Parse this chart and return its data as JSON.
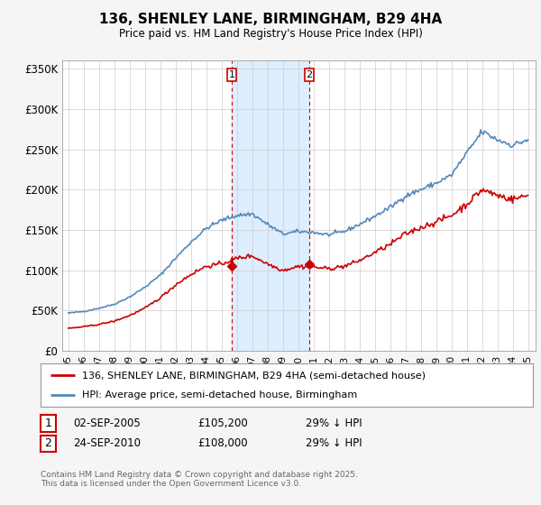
{
  "title": "136, SHENLEY LANE, BIRMINGHAM, B29 4HA",
  "subtitle": "Price paid vs. HM Land Registry's House Price Index (HPI)",
  "legend_property": "136, SHENLEY LANE, BIRMINGHAM, B29 4HA (semi-detached house)",
  "legend_hpi": "HPI: Average price, semi-detached house, Birmingham",
  "footer": "Contains HM Land Registry data © Crown copyright and database right 2025.\nThis data is licensed under the Open Government Licence v3.0.",
  "purchase1": {
    "label": "1",
    "date": "02-SEP-2005",
    "price": "£105,200",
    "hpi": "29% ↓ HPI",
    "year": 2005.67
  },
  "purchase2": {
    "label": "2",
    "date": "24-SEP-2010",
    "price": "£108,000",
    "hpi": "29% ↓ HPI",
    "year": 2010.73
  },
  "property_color": "#cc0000",
  "hpi_color": "#5588bb",
  "vline_color": "#cc0000",
  "background_color": "#f5f5f5",
  "plot_bg_color": "#ffffff",
  "highlight_bg": "#ddeeff",
  "ylim": [
    0,
    360000
  ],
  "yticks": [
    0,
    50000,
    100000,
    150000,
    200000,
    250000,
    300000,
    350000
  ],
  "ytick_labels": [
    "£0",
    "£50K",
    "£100K",
    "£150K",
    "£200K",
    "£250K",
    "£300K",
    "£350K"
  ],
  "xtick_years": [
    "95",
    "96",
    "97",
    "98",
    "99",
    "00",
    "01",
    "02",
    "03",
    "04",
    "05",
    "06",
    "07",
    "08",
    "09",
    "10",
    "11",
    "12",
    "13",
    "14",
    "15",
    "16",
    "17",
    "18",
    "19",
    "20",
    "21",
    "22",
    "23",
    "24",
    "25"
  ],
  "xtick_values": [
    1995,
    1996,
    1997,
    1998,
    1999,
    2000,
    2001,
    2002,
    2003,
    2004,
    2005,
    2006,
    2007,
    2008,
    2009,
    2010,
    2011,
    2012,
    2013,
    2014,
    2015,
    2016,
    2017,
    2018,
    2019,
    2020,
    2021,
    2022,
    2023,
    2024,
    2025
  ]
}
